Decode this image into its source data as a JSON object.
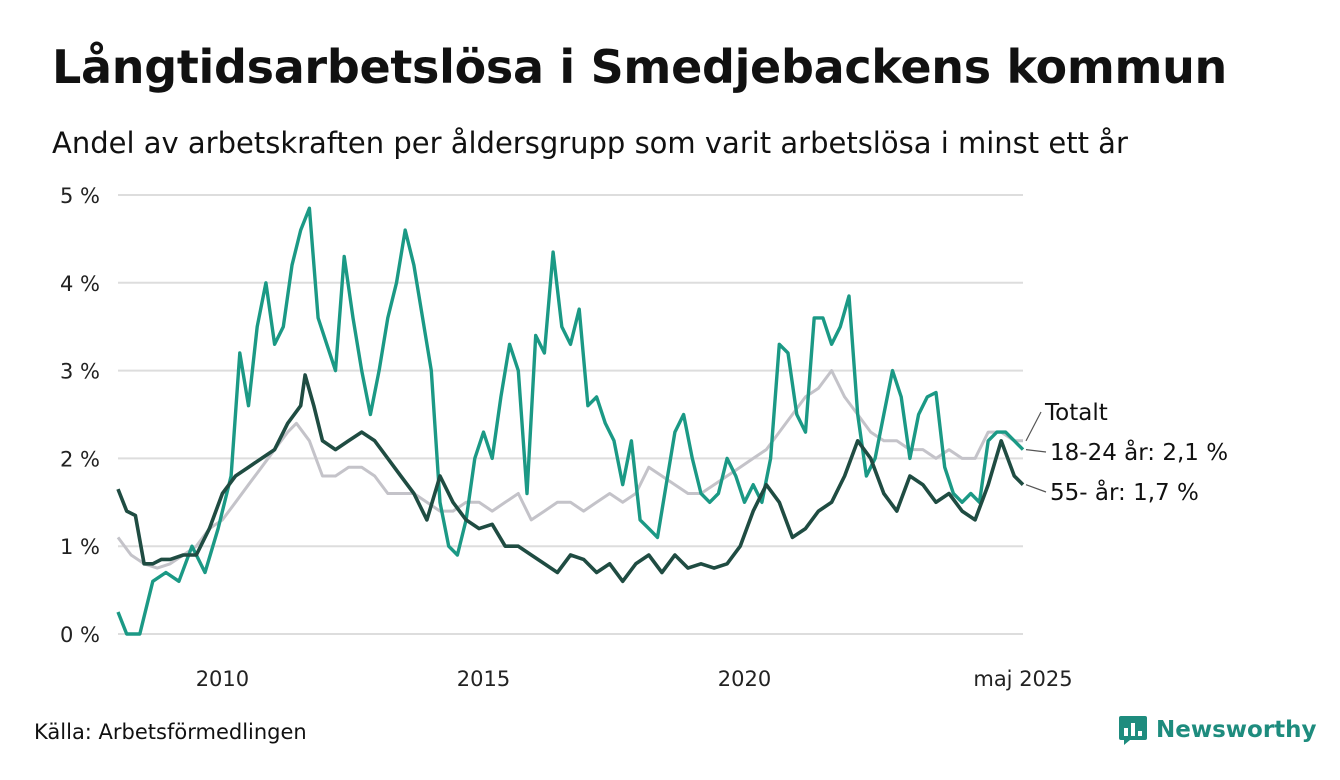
{
  "title": "Långtidsarbetslösa i Smedjebackens kommun",
  "subtitle": "Andel av arbetskraften per åldersgrupp som varit arbetslösa i minst ett år",
  "source": "Källa: Arbetsförmedlingen",
  "brand": "Newsworthy",
  "colors": {
    "total": "#c4c3c9",
    "youth": "#1b9985",
    "older": "#1f4c42",
    "grid": "#dddddd",
    "brand": "#1e8c7e"
  },
  "chart_data": {
    "type": "line",
    "x_unit": "month",
    "x_start": "2008-01",
    "x_end": "2025-05",
    "ylim": [
      0,
      5
    ],
    "y_ticks": [
      0,
      1,
      2,
      3,
      4,
      5
    ],
    "y_tick_labels": [
      "0 %",
      "1 %",
      "2 %",
      "3 %",
      "4 %",
      "5 %"
    ],
    "x_ticks": [
      "2010",
      "2015",
      "2020",
      "maj 2025"
    ],
    "grid": true,
    "series": [
      {
        "name": "Totalt",
        "key": "total",
        "label": "Totalt",
        "points": [
          [
            "2008-01",
            1.1
          ],
          [
            "2008-04",
            0.9
          ],
          [
            "2008-07",
            0.8
          ],
          [
            "2008-10",
            0.75
          ],
          [
            "2009-01",
            0.8
          ],
          [
            "2009-04",
            0.9
          ],
          [
            "2009-07",
            1.0
          ],
          [
            "2009-10",
            1.2
          ],
          [
            "2010-01",
            1.3
          ],
          [
            "2010-04",
            1.5
          ],
          [
            "2010-07",
            1.7
          ],
          [
            "2010-10",
            1.9
          ],
          [
            "2011-01",
            2.1
          ],
          [
            "2011-04",
            2.3
          ],
          [
            "2011-06",
            2.4
          ],
          [
            "2011-09",
            2.2
          ],
          [
            "2011-12",
            1.8
          ],
          [
            "2012-03",
            1.8
          ],
          [
            "2012-06",
            1.9
          ],
          [
            "2012-09",
            1.9
          ],
          [
            "2012-12",
            1.8
          ],
          [
            "2013-03",
            1.6
          ],
          [
            "2013-06",
            1.6
          ],
          [
            "2013-09",
            1.6
          ],
          [
            "2013-12",
            1.5
          ],
          [
            "2014-03",
            1.4
          ],
          [
            "2014-06",
            1.4
          ],
          [
            "2014-09",
            1.5
          ],
          [
            "2014-12",
            1.5
          ],
          [
            "2015-03",
            1.4
          ],
          [
            "2015-06",
            1.5
          ],
          [
            "2015-09",
            1.6
          ],
          [
            "2015-12",
            1.3
          ],
          [
            "2016-03",
            1.4
          ],
          [
            "2016-06",
            1.5
          ],
          [
            "2016-09",
            1.5
          ],
          [
            "2016-12",
            1.4
          ],
          [
            "2017-03",
            1.5
          ],
          [
            "2017-06",
            1.6
          ],
          [
            "2017-09",
            1.5
          ],
          [
            "2017-12",
            1.6
          ],
          [
            "2018-03",
            1.9
          ],
          [
            "2018-06",
            1.8
          ],
          [
            "2018-09",
            1.7
          ],
          [
            "2018-12",
            1.6
          ],
          [
            "2019-03",
            1.6
          ],
          [
            "2019-06",
            1.7
          ],
          [
            "2019-09",
            1.8
          ],
          [
            "2019-12",
            1.9
          ],
          [
            "2020-03",
            2.0
          ],
          [
            "2020-06",
            2.1
          ],
          [
            "2020-09",
            2.3
          ],
          [
            "2020-12",
            2.5
          ],
          [
            "2021-03",
            2.7
          ],
          [
            "2021-06",
            2.8
          ],
          [
            "2021-09",
            3.0
          ],
          [
            "2021-12",
            2.7
          ],
          [
            "2022-03",
            2.5
          ],
          [
            "2022-06",
            2.3
          ],
          [
            "2022-09",
            2.2
          ],
          [
            "2022-12",
            2.2
          ],
          [
            "2023-03",
            2.1
          ],
          [
            "2023-06",
            2.1
          ],
          [
            "2023-09",
            2.0
          ],
          [
            "2023-12",
            2.1
          ],
          [
            "2024-03",
            2.0
          ],
          [
            "2024-06",
            2.0
          ],
          [
            "2024-09",
            2.3
          ],
          [
            "2024-12",
            2.3
          ],
          [
            "2025-03",
            2.2
          ],
          [
            "2025-05",
            2.2
          ]
        ]
      },
      {
        "name": "18-24 år",
        "key": "youth",
        "label": "18-24 år: 2,1 %",
        "points": [
          [
            "2008-01",
            0.25
          ],
          [
            "2008-03",
            0.0
          ],
          [
            "2008-06",
            0.0
          ],
          [
            "2008-09",
            0.6
          ],
          [
            "2008-12",
            0.7
          ],
          [
            "2009-03",
            0.6
          ],
          [
            "2009-06",
            1.0
          ],
          [
            "2009-09",
            0.7
          ],
          [
            "2009-12",
            1.2
          ],
          [
            "2010-03",
            1.8
          ],
          [
            "2010-05",
            3.2
          ],
          [
            "2010-07",
            2.6
          ],
          [
            "2010-09",
            3.5
          ],
          [
            "2010-11",
            4.0
          ],
          [
            "2011-01",
            3.3
          ],
          [
            "2011-03",
            3.5
          ],
          [
            "2011-05",
            4.2
          ],
          [
            "2011-07",
            4.6
          ],
          [
            "2011-09",
            4.85
          ],
          [
            "2011-11",
            3.6
          ],
          [
            "2012-01",
            3.3
          ],
          [
            "2012-03",
            3.0
          ],
          [
            "2012-05",
            4.3
          ],
          [
            "2012-07",
            3.6
          ],
          [
            "2012-09",
            3.0
          ],
          [
            "2012-11",
            2.5
          ],
          [
            "2013-01",
            3.0
          ],
          [
            "2013-03",
            3.6
          ],
          [
            "2013-05",
            4.0
          ],
          [
            "2013-07",
            4.6
          ],
          [
            "2013-09",
            4.2
          ],
          [
            "2013-11",
            3.6
          ],
          [
            "2014-01",
            3.0
          ],
          [
            "2014-03",
            1.5
          ],
          [
            "2014-05",
            1.0
          ],
          [
            "2014-07",
            0.9
          ],
          [
            "2014-09",
            1.3
          ],
          [
            "2014-11",
            2.0
          ],
          [
            "2015-01",
            2.3
          ],
          [
            "2015-03",
            2.0
          ],
          [
            "2015-05",
            2.7
          ],
          [
            "2015-07",
            3.3
          ],
          [
            "2015-09",
            3.0
          ],
          [
            "2015-11",
            1.6
          ],
          [
            "2016-01",
            3.4
          ],
          [
            "2016-03",
            3.2
          ],
          [
            "2016-05",
            4.35
          ],
          [
            "2016-07",
            3.5
          ],
          [
            "2016-09",
            3.3
          ],
          [
            "2016-11",
            3.7
          ],
          [
            "2017-01",
            2.6
          ],
          [
            "2017-03",
            2.7
          ],
          [
            "2017-05",
            2.4
          ],
          [
            "2017-07",
            2.2
          ],
          [
            "2017-09",
            1.7
          ],
          [
            "2017-11",
            2.2
          ],
          [
            "2018-01",
            1.3
          ],
          [
            "2018-03",
            1.2
          ],
          [
            "2018-05",
            1.1
          ],
          [
            "2018-07",
            1.7
          ],
          [
            "2018-09",
            2.3
          ],
          [
            "2018-11",
            2.5
          ],
          [
            "2019-01",
            2.0
          ],
          [
            "2019-03",
            1.6
          ],
          [
            "2019-05",
            1.5
          ],
          [
            "2019-07",
            1.6
          ],
          [
            "2019-09",
            2.0
          ],
          [
            "2019-11",
            1.8
          ],
          [
            "2020-01",
            1.5
          ],
          [
            "2020-03",
            1.7
          ],
          [
            "2020-05",
            1.5
          ],
          [
            "2020-07",
            2.0
          ],
          [
            "2020-09",
            3.3
          ],
          [
            "2020-11",
            3.2
          ],
          [
            "2021-01",
            2.5
          ],
          [
            "2021-03",
            2.3
          ],
          [
            "2021-05",
            3.6
          ],
          [
            "2021-07",
            3.6
          ],
          [
            "2021-09",
            3.3
          ],
          [
            "2021-11",
            3.5
          ],
          [
            "2022-01",
            3.85
          ],
          [
            "2022-03",
            2.5
          ],
          [
            "2022-05",
            1.8
          ],
          [
            "2022-07",
            2.0
          ],
          [
            "2022-09",
            2.5
          ],
          [
            "2022-11",
            3.0
          ],
          [
            "2023-01",
            2.7
          ],
          [
            "2023-03",
            2.0
          ],
          [
            "2023-05",
            2.5
          ],
          [
            "2023-07",
            2.7
          ],
          [
            "2023-09",
            2.75
          ],
          [
            "2023-11",
            1.9
          ],
          [
            "2024-01",
            1.6
          ],
          [
            "2024-03",
            1.5
          ],
          [
            "2024-05",
            1.6
          ],
          [
            "2024-07",
            1.5
          ],
          [
            "2024-09",
            2.2
          ],
          [
            "2024-11",
            2.3
          ],
          [
            "2025-01",
            2.3
          ],
          [
            "2025-03",
            2.2
          ],
          [
            "2025-05",
            2.1
          ]
        ]
      },
      {
        "name": "55- år",
        "key": "older",
        "label": "55- år: 1,7 %",
        "points": [
          [
            "2008-01",
            1.65
          ],
          [
            "2008-03",
            1.4
          ],
          [
            "2008-05",
            1.35
          ],
          [
            "2008-07",
            0.8
          ],
          [
            "2008-09",
            0.8
          ],
          [
            "2008-11",
            0.85
          ],
          [
            "2009-01",
            0.85
          ],
          [
            "2009-04",
            0.9
          ],
          [
            "2009-07",
            0.9
          ],
          [
            "2009-10",
            1.2
          ],
          [
            "2010-01",
            1.6
          ],
          [
            "2010-04",
            1.8
          ],
          [
            "2010-07",
            1.9
          ],
          [
            "2010-10",
            2.0
          ],
          [
            "2011-01",
            2.1
          ],
          [
            "2011-04",
            2.4
          ],
          [
            "2011-07",
            2.6
          ],
          [
            "2011-08",
            2.95
          ],
          [
            "2011-10",
            2.6
          ],
          [
            "2011-12",
            2.2
          ],
          [
            "2012-03",
            2.1
          ],
          [
            "2012-06",
            2.2
          ],
          [
            "2012-09",
            2.3
          ],
          [
            "2012-12",
            2.2
          ],
          [
            "2013-03",
            2.0
          ],
          [
            "2013-06",
            1.8
          ],
          [
            "2013-09",
            1.6
          ],
          [
            "2013-12",
            1.3
          ],
          [
            "2014-03",
            1.8
          ],
          [
            "2014-06",
            1.5
          ],
          [
            "2014-09",
            1.3
          ],
          [
            "2014-12",
            1.2
          ],
          [
            "2015-03",
            1.25
          ],
          [
            "2015-06",
            1.0
          ],
          [
            "2015-09",
            1.0
          ],
          [
            "2015-12",
            0.9
          ],
          [
            "2016-03",
            0.8
          ],
          [
            "2016-06",
            0.7
          ],
          [
            "2016-09",
            0.9
          ],
          [
            "2016-12",
            0.85
          ],
          [
            "2017-03",
            0.7
          ],
          [
            "2017-06",
            0.8
          ],
          [
            "2017-09",
            0.6
          ],
          [
            "2017-12",
            0.8
          ],
          [
            "2018-03",
            0.9
          ],
          [
            "2018-06",
            0.7
          ],
          [
            "2018-09",
            0.9
          ],
          [
            "2018-12",
            0.75
          ],
          [
            "2019-03",
            0.8
          ],
          [
            "2019-06",
            0.75
          ],
          [
            "2019-09",
            0.8
          ],
          [
            "2019-12",
            1.0
          ],
          [
            "2020-03",
            1.4
          ],
          [
            "2020-06",
            1.7
          ],
          [
            "2020-09",
            1.5
          ],
          [
            "2020-12",
            1.1
          ],
          [
            "2021-03",
            1.2
          ],
          [
            "2021-06",
            1.4
          ],
          [
            "2021-09",
            1.5
          ],
          [
            "2021-12",
            1.8
          ],
          [
            "2022-03",
            2.2
          ],
          [
            "2022-06",
            2.0
          ],
          [
            "2022-09",
            1.6
          ],
          [
            "2022-12",
            1.4
          ],
          [
            "2023-03",
            1.8
          ],
          [
            "2023-06",
            1.7
          ],
          [
            "2023-09",
            1.5
          ],
          [
            "2023-12",
            1.6
          ],
          [
            "2024-03",
            1.4
          ],
          [
            "2024-06",
            1.3
          ],
          [
            "2024-09",
            1.7
          ],
          [
            "2024-12",
            2.2
          ],
          [
            "2025-03",
            1.8
          ],
          [
            "2025-05",
            1.7
          ]
        ]
      }
    ]
  }
}
